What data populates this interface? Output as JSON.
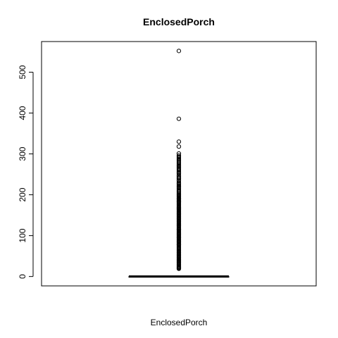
{
  "chart_data": {
    "type": "boxplot",
    "title": "EnclosedPorch",
    "xlabel": "EnclosedPorch",
    "ylabel": "",
    "ylim": [
      -23,
      575
    ],
    "yticks": [
      0,
      100,
      200,
      300,
      400,
      500
    ],
    "ytick_labels": [
      "0",
      "100",
      "200",
      "300",
      "400",
      "500"
    ],
    "grid": false,
    "box": {
      "min": 0,
      "q1": 0,
      "median": 0,
      "q3": 0,
      "max": 0
    },
    "outliers": [
      552,
      386,
      330,
      318,
      301,
      296,
      293,
      291,
      288,
      286,
      283,
      280,
      278,
      275,
      272,
      270,
      268,
      265,
      262,
      259,
      256,
      254,
      252,
      248,
      245,
      242,
      240,
      236,
      234,
      230,
      228,
      226,
      223,
      220,
      218,
      216,
      213,
      210,
      208,
      205,
      202,
      200,
      198,
      196,
      194,
      192,
      190,
      189,
      187,
      185,
      184,
      183,
      181,
      180,
      178,
      176,
      174,
      172,
      170,
      169,
      168,
      167,
      165,
      164,
      162,
      160,
      158,
      156,
      155,
      154,
      152,
      150,
      148,
      146,
      144,
      143,
      142,
      140,
      138,
      136,
      134,
      132,
      130,
      128,
      126,
      125,
      124,
      122,
      120,
      118,
      116,
      115,
      114,
      112,
      110,
      108,
      106,
      105,
      104,
      102,
      100,
      98,
      96,
      95,
      94,
      92,
      90,
      88,
      86,
      85,
      84,
      82,
      80,
      78,
      77,
      75,
      72,
      70,
      68,
      66,
      64,
      62,
      60,
      58,
      56,
      54,
      52,
      50,
      48,
      46,
      44,
      42,
      40,
      39,
      37,
      36,
      34,
      32,
      30,
      28,
      26,
      24,
      23,
      22,
      20,
      19
    ]
  }
}
